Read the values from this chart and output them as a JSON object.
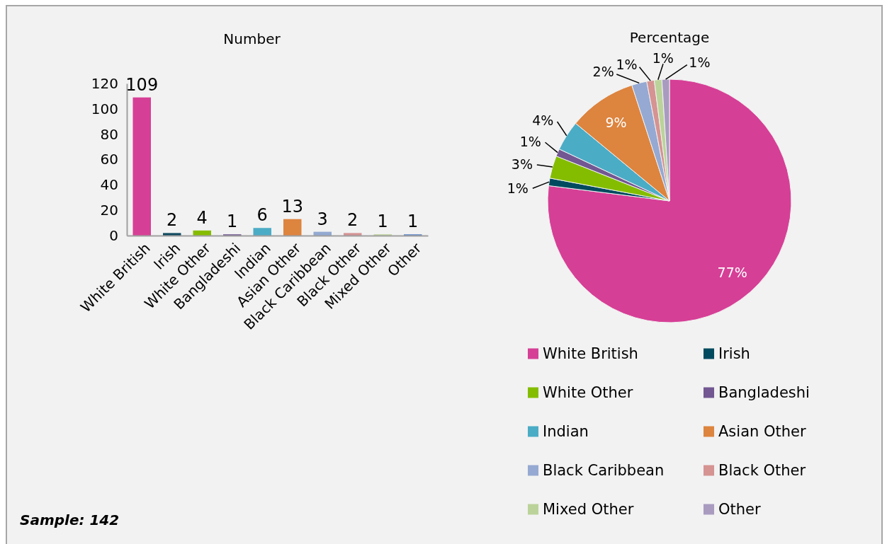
{
  "chart_data": [
    {
      "type": "bar",
      "title": "Number",
      "categories": [
        "White British",
        "Irish",
        "White Other",
        "Bangladeshi",
        "Indian",
        "Asian Other",
        "Black Caribbean",
        "Black Other",
        "Mixed Other",
        "Other"
      ],
      "values": [
        109,
        2,
        4,
        1,
        6,
        13,
        3,
        2,
        1,
        1
      ],
      "colors": [
        "#d63f96",
        "#0f4a5f",
        "#86bc00",
        "#725792",
        "#4bacc6",
        "#dd843f",
        "#93a9d0",
        "#d49394",
        "#bbd39a",
        "#5f87c6"
      ],
      "ylim": [
        0,
        120
      ],
      "yticks": [
        0,
        20,
        40,
        60,
        80,
        100,
        120
      ],
      "data_labels": true,
      "annotations": [
        "Sample: 142"
      ]
    },
    {
      "type": "pie",
      "title": "Percentage",
      "categories": [
        "White British",
        "Irish",
        "White Other",
        "Bangladeshi",
        "Indian",
        "Asian Other",
        "Black Caribbean",
        "Black Other",
        "Mixed Other",
        "Other"
      ],
      "values": [
        77,
        1,
        3,
        1,
        4,
        9,
        2,
        1,
        1,
        1
      ],
      "colors": [
        "#d63f96",
        "#004a5f",
        "#84bd00",
        "#725792",
        "#4bacc6",
        "#dd843f",
        "#95a9d2",
        "#d59392",
        "#bbd39a",
        "#a99bc0"
      ],
      "value_labels": [
        "77%",
        "1%",
        "3%",
        "1%",
        "4%",
        "9%",
        "2%",
        "1%",
        "1%",
        "1%"
      ],
      "legend": "bottom"
    }
  ]
}
